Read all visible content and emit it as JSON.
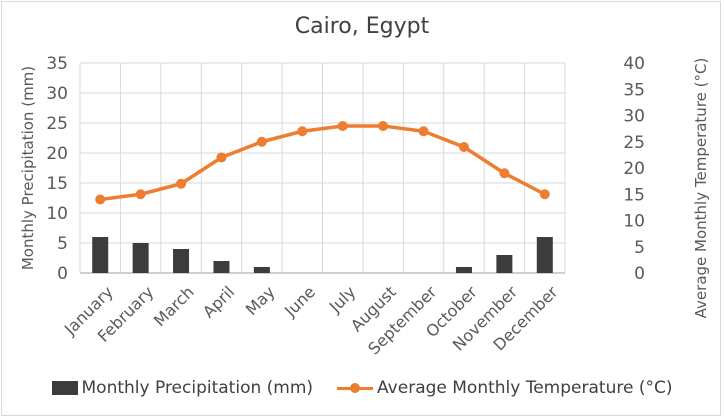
{
  "chart_data": {
    "type": "bar+line",
    "title": "Cairo, Egypt",
    "categories": [
      "January",
      "February",
      "March",
      "April",
      "May",
      "June",
      "July",
      "August",
      "September",
      "October",
      "November",
      "December"
    ],
    "series": [
      {
        "name": "Monthly Precipitation  (mm)",
        "type": "bar",
        "axis": "left",
        "color": "#3c3c3c",
        "values": [
          6,
          5,
          4,
          2,
          1,
          0,
          0,
          0,
          0,
          1,
          3,
          6
        ]
      },
      {
        "name": "Average Monthly  Temperature (°C)",
        "type": "line",
        "axis": "right",
        "color": "#ed7d31",
        "values": [
          14,
          15,
          17,
          22,
          25,
          27,
          28,
          28,
          27,
          24,
          19,
          15
        ]
      }
    ],
    "ylabel": "Monthly Precipitation  (mm)",
    "y2label": "Average Monthly  Temperature (°C)",
    "ylim": [
      0,
      35
    ],
    "y2lim": [
      0,
      40
    ],
    "yticks": [
      0,
      5,
      10,
      15,
      20,
      25,
      30,
      35
    ],
    "y2ticks": [
      0,
      5,
      10,
      15,
      20,
      25,
      30,
      35,
      40
    ],
    "grid": true,
    "legend": "bottom"
  }
}
